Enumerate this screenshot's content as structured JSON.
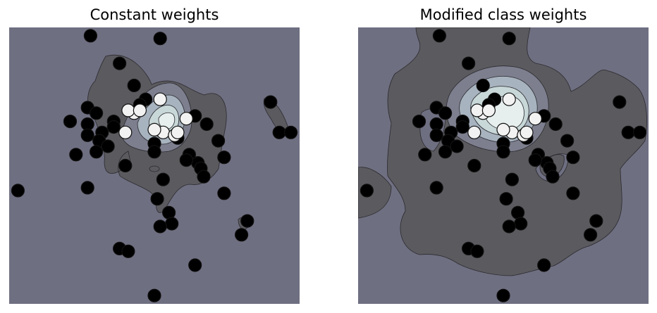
{
  "colors": {
    "background": "#6f6f82",
    "contour_levels": [
      "#6f6f82",
      "#5a5a5f",
      "#7d7f8f",
      "#a7b3bf",
      "#c8d7d8",
      "#e6eeee"
    ],
    "negative_point": "#000000",
    "positive_point": "#f2f2f2",
    "point_edge": "#111111"
  },
  "chart_data": [
    {
      "type": "scatter",
      "title": "Constant weights",
      "xlabel": "",
      "ylabel": "",
      "xlim": [
        0,
        1
      ],
      "ylim": [
        0,
        1
      ],
      "grid": false,
      "legend": "none",
      "background": "decision-function contour",
      "series": [
        {
          "values": [
            [
              0.28,
              0.97
            ],
            [
              0.52,
              0.96
            ],
            [
              0.38,
              0.87
            ],
            [
              0.43,
              0.79
            ],
            [
              0.27,
              0.71
            ],
            [
              0.3,
              0.69
            ],
            [
              0.21,
              0.66
            ],
            [
              0.27,
              0.65
            ],
            [
              0.36,
              0.66
            ],
            [
              0.36,
              0.64
            ],
            [
              0.32,
              0.62
            ],
            [
              0.27,
              0.61
            ],
            [
              0.31,
              0.59
            ],
            [
              0.34,
              0.57
            ],
            [
              0.23,
              0.54
            ],
            [
              0.3,
              0.55
            ],
            [
              0.4,
              0.5
            ],
            [
              0.5,
              0.58
            ],
            [
              0.5,
              0.55
            ],
            [
              0.58,
              0.6
            ],
            [
              0.64,
              0.68
            ],
            [
              0.68,
              0.65
            ],
            [
              0.72,
              0.59
            ],
            [
              0.74,
              0.53
            ],
            [
              0.62,
              0.54
            ],
            [
              0.65,
              0.51
            ],
            [
              0.61,
              0.52
            ],
            [
              0.66,
              0.49
            ],
            [
              0.67,
              0.46
            ],
            [
              0.53,
              0.45
            ],
            [
              0.51,
              0.38
            ],
            [
              0.55,
              0.33
            ],
            [
              0.56,
              0.29
            ],
            [
              0.52,
              0.28
            ],
            [
              0.27,
              0.42
            ],
            [
              0.03,
              0.41
            ],
            [
              0.74,
              0.4
            ],
            [
              0.82,
              0.3
            ],
            [
              0.8,
              0.25
            ],
            [
              0.9,
              0.73
            ],
            [
              0.93,
              0.62
            ],
            [
              0.97,
              0.62
            ],
            [
              0.38,
              0.2
            ],
            [
              0.41,
              0.19
            ],
            [
              0.64,
              0.14
            ],
            [
              0.5,
              0.03
            ],
            [
              0.47,
              0.74
            ],
            [
              0.45,
              0.72
            ]
          ]
        },
        {
          "values": [
            [
              0.52,
              0.74
            ],
            [
              0.43,
              0.69
            ],
            [
              0.41,
              0.7
            ],
            [
              0.45,
              0.7
            ],
            [
              0.61,
              0.67
            ],
            [
              0.4,
              0.62
            ],
            [
              0.53,
              0.62
            ],
            [
              0.5,
              0.63
            ],
            [
              0.57,
              0.61
            ],
            [
              0.58,
              0.62
            ]
          ]
        }
      ]
    },
    {
      "type": "scatter",
      "title": "Modified class weights",
      "xlabel": "",
      "ylabel": "",
      "xlim": [
        0,
        1
      ],
      "ylim": [
        0,
        1
      ],
      "grid": false,
      "legend": "none",
      "background": "decision-function contour",
      "series": [
        {
          "values": [
            [
              0.28,
              0.97
            ],
            [
              0.52,
              0.96
            ],
            [
              0.38,
              0.87
            ],
            [
              0.43,
              0.79
            ],
            [
              0.27,
              0.71
            ],
            [
              0.3,
              0.69
            ],
            [
              0.21,
              0.66
            ],
            [
              0.27,
              0.65
            ],
            [
              0.36,
              0.66
            ],
            [
              0.36,
              0.64
            ],
            [
              0.32,
              0.62
            ],
            [
              0.27,
              0.61
            ],
            [
              0.31,
              0.59
            ],
            [
              0.34,
              0.57
            ],
            [
              0.23,
              0.54
            ],
            [
              0.3,
              0.55
            ],
            [
              0.4,
              0.5
            ],
            [
              0.5,
              0.58
            ],
            [
              0.5,
              0.55
            ],
            [
              0.58,
              0.6
            ],
            [
              0.64,
              0.68
            ],
            [
              0.68,
              0.65
            ],
            [
              0.72,
              0.59
            ],
            [
              0.74,
              0.53
            ],
            [
              0.62,
              0.54
            ],
            [
              0.65,
              0.51
            ],
            [
              0.61,
              0.52
            ],
            [
              0.66,
              0.49
            ],
            [
              0.67,
              0.46
            ],
            [
              0.53,
              0.45
            ],
            [
              0.51,
              0.38
            ],
            [
              0.55,
              0.33
            ],
            [
              0.56,
              0.29
            ],
            [
              0.52,
              0.28
            ],
            [
              0.27,
              0.42
            ],
            [
              0.03,
              0.41
            ],
            [
              0.74,
              0.4
            ],
            [
              0.82,
              0.3
            ],
            [
              0.8,
              0.25
            ],
            [
              0.9,
              0.73
            ],
            [
              0.93,
              0.62
            ],
            [
              0.97,
              0.62
            ],
            [
              0.38,
              0.2
            ],
            [
              0.41,
              0.19
            ],
            [
              0.64,
              0.14
            ],
            [
              0.5,
              0.03
            ],
            [
              0.47,
              0.74
            ],
            [
              0.45,
              0.72
            ]
          ]
        },
        {
          "values": [
            [
              0.52,
              0.74
            ],
            [
              0.43,
              0.69
            ],
            [
              0.41,
              0.7
            ],
            [
              0.45,
              0.7
            ],
            [
              0.61,
              0.67
            ],
            [
              0.4,
              0.62
            ],
            [
              0.53,
              0.62
            ],
            [
              0.5,
              0.63
            ],
            [
              0.57,
              0.61
            ],
            [
              0.58,
              0.62
            ]
          ]
        }
      ]
    }
  ]
}
